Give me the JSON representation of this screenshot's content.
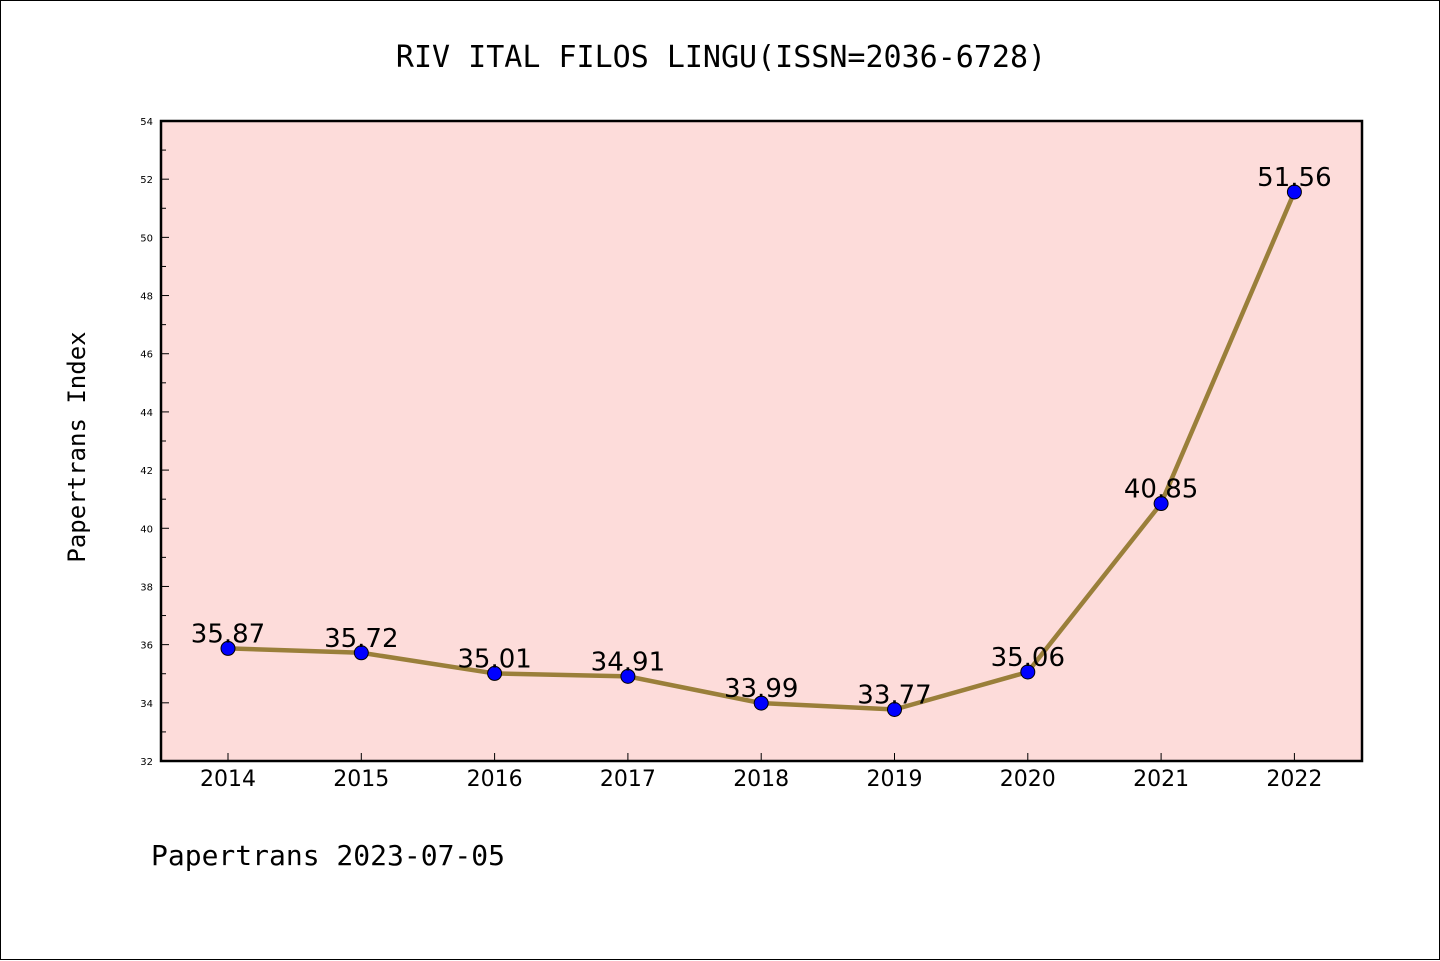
{
  "chart_data": {
    "type": "line",
    "title": "RIV ITAL FILOS LINGU(ISSN=2036-6728)",
    "xlabel": "",
    "ylabel": "Papertrans Index",
    "footer": "Papertrans 2023-07-05",
    "categories": [
      "2014",
      "2015",
      "2016",
      "2017",
      "2018",
      "2019",
      "2020",
      "2021",
      "2022"
    ],
    "series": [
      {
        "values": [
          35.87,
          35.72,
          35.01,
          34.91,
          33.99,
          33.77,
          35.06,
          40.85,
          51.56
        ],
        "labels": [
          "35.87",
          "35.72",
          "35.01",
          "34.91",
          "33.99",
          "33.77",
          "35.06",
          "40.85",
          "51.56"
        ]
      }
    ],
    "ylim": [
      32,
      54
    ],
    "yticks": [
      32,
      34,
      36,
      38,
      40,
      42,
      44,
      46,
      48,
      50,
      52,
      54
    ],
    "grid": false,
    "legend": "none",
    "colors": {
      "plot_background": "#fddcda",
      "line": "#9a7f3a",
      "marker": "#0000ff",
      "marker_edge": "#000000",
      "axes": "#000000"
    }
  }
}
